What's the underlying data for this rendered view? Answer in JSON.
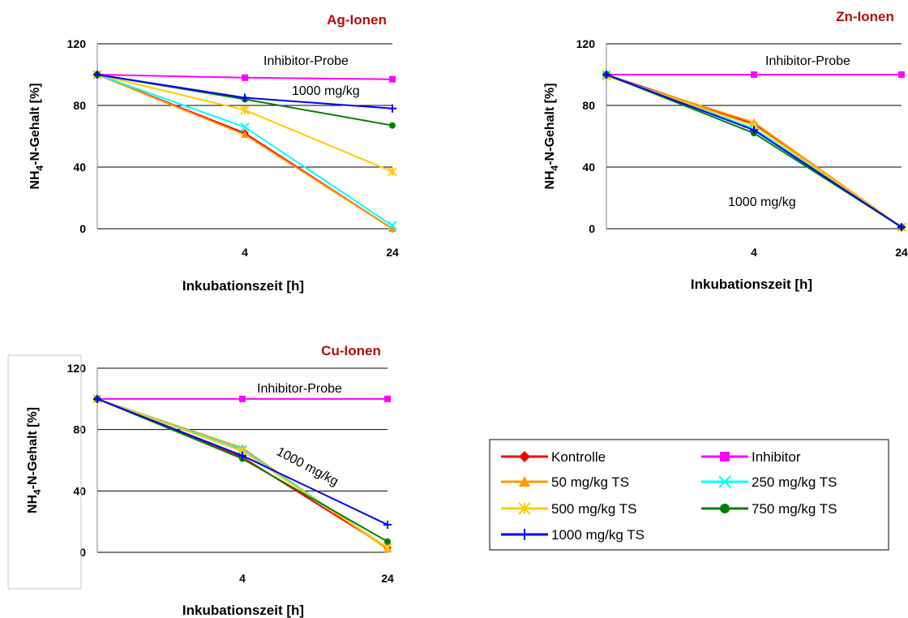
{
  "chart_data": [
    {
      "type": "line",
      "title": "Ag-Ionen",
      "ylabel": "NH4-N-Gehalt [%]",
      "xlabel": "Inkubationszeit [h]",
      "x_ticks": [
        "4",
        "24"
      ],
      "ylim": [
        0,
        120
      ],
      "y_ticks": [
        0,
        40,
        80,
        120
      ],
      "grid": true,
      "annotations": [
        "Inhibitor-Probe",
        "1000 mg/kg"
      ],
      "series": [
        {
          "name": "Kontrolle",
          "values": [
            100,
            62,
            0
          ]
        },
        {
          "name": "Inhibitor",
          "values": [
            100,
            98,
            97
          ]
        },
        {
          "name": "50 mg/kg TS",
          "values": [
            100,
            61,
            0
          ]
        },
        {
          "name": "250 mg/kg TS",
          "values": [
            100,
            66,
            2
          ]
        },
        {
          "name": "500 mg/kg TS",
          "values": [
            100,
            77,
            37
          ]
        },
        {
          "name": "750 mg/kg TS",
          "values": [
            100,
            84,
            67
          ]
        },
        {
          "name": "1000 mg/kg TS",
          "values": [
            100,
            85,
            78
          ]
        }
      ]
    },
    {
      "type": "line",
      "title": "Zn-Ionen",
      "ylabel": "NH4-N-Gehalt [%]",
      "xlabel": "Inkubationszeit [h]",
      "x_ticks": [
        "4",
        "24"
      ],
      "ylim": [
        0,
        120
      ],
      "y_ticks": [
        0,
        40,
        80,
        120
      ],
      "grid": true,
      "annotations": [
        "Inhibitor-Probe",
        "1000 mg/kg"
      ],
      "series": [
        {
          "name": "Kontrolle",
          "values": [
            100,
            68,
            1
          ]
        },
        {
          "name": "Inhibitor",
          "values": [
            100,
            100,
            100
          ]
        },
        {
          "name": "50 mg/kg TS",
          "values": [
            99,
            69,
            1
          ]
        },
        {
          "name": "250 mg/kg TS",
          "values": [
            100,
            65,
            1
          ]
        },
        {
          "name": "500 mg/kg TS",
          "values": [
            99,
            67,
            1
          ]
        },
        {
          "name": "750 mg/kg TS",
          "values": [
            100,
            62,
            1
          ]
        },
        {
          "name": "1000 mg/kg TS",
          "values": [
            100,
            64,
            1
          ]
        }
      ]
    },
    {
      "type": "line",
      "title": "Cu-Ionen",
      "ylabel": "NH4-N-Gehalt [%]",
      "xlabel": "Inkubationszeit [h]",
      "x_ticks": [
        "4",
        "24"
      ],
      "ylim": [
        0,
        120
      ],
      "y_ticks": [
        0,
        40,
        80,
        120
      ],
      "grid": true,
      "annotations": [
        "Inhibitor-Probe",
        "1000 mg/kg"
      ],
      "series": [
        {
          "name": "Kontrolle",
          "values": [
            100,
            62,
            3
          ]
        },
        {
          "name": "Inhibitor",
          "values": [
            100,
            100,
            100
          ]
        },
        {
          "name": "50 mg/kg TS",
          "values": [
            100,
            68,
            2
          ]
        },
        {
          "name": "250 mg/kg TS",
          "values": [
            100,
            67,
            3
          ]
        },
        {
          "name": "500 mg/kg TS",
          "values": [
            100,
            66,
            3
          ]
        },
        {
          "name": "750 mg/kg TS",
          "values": [
            100,
            61,
            7
          ]
        },
        {
          "name": "1000 mg/kg TS",
          "values": [
            100,
            63,
            18
          ]
        }
      ]
    }
  ],
  "legend": {
    "placement": "bottom-right",
    "items": [
      {
        "label": "Kontrolle",
        "color": "#ff0000",
        "marker": "diamond"
      },
      {
        "label": "Inhibitor",
        "color": "#ff00ff",
        "marker": "square"
      },
      {
        "label": "50 mg/kg TS",
        "color": "#ff9900",
        "marker": "triangle"
      },
      {
        "label": "250 mg/kg TS",
        "color": "#00ffff",
        "marker": "x"
      },
      {
        "label": "500 mg/kg TS",
        "color": "#ffcc00",
        "marker": "star"
      },
      {
        "label": "750 mg/kg TS",
        "color": "#008000",
        "marker": "circle"
      },
      {
        "label": "1000 mg/kg TS",
        "color": "#0000ff",
        "marker": "plus"
      }
    ]
  }
}
